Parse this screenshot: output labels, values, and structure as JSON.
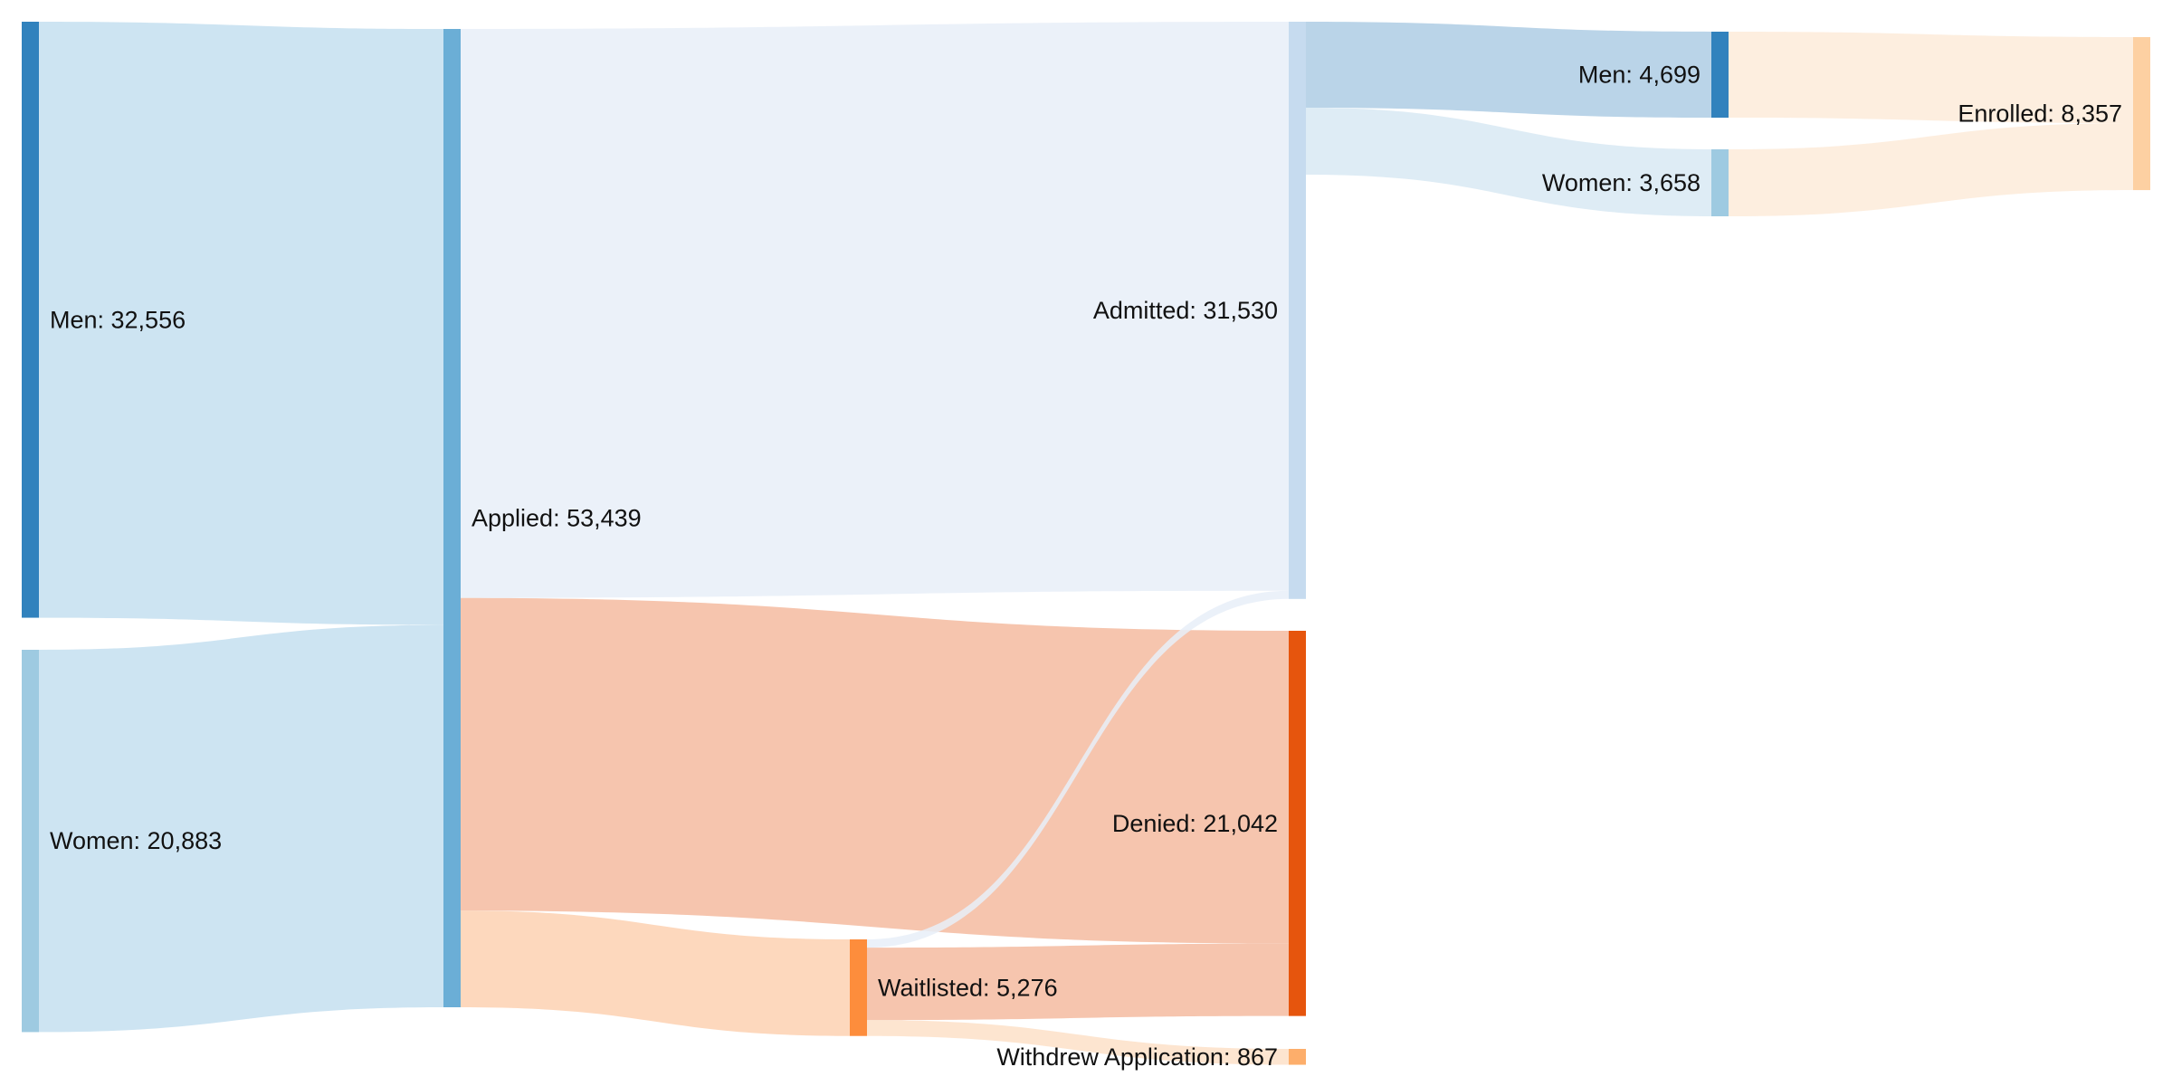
{
  "chart_data": {
    "type": "sankey",
    "title": "",
    "nodes": [
      {
        "id": "men",
        "label": "Men: 32,556",
        "value": 32556,
        "color": "#3182bd"
      },
      {
        "id": "women",
        "label": "Women: 20,883",
        "value": 20883,
        "color": "#9ecae1"
      },
      {
        "id": "applied",
        "label": "Applied: 53,439",
        "value": 53439,
        "color": "#6baed6"
      },
      {
        "id": "admitted",
        "label": "Admitted: 31,530",
        "value": 31530,
        "color": "#c6dbef"
      },
      {
        "id": "denied",
        "label": "Denied: 21,042",
        "value": 21042,
        "color": "#e6550d"
      },
      {
        "id": "waitlisted",
        "label": "Waitlisted: 5,276",
        "value": 5276,
        "color": "#fd8d3c"
      },
      {
        "id": "withdrew",
        "label": "Withdrew Application: 867",
        "value": 867,
        "color": "#fdae6b"
      },
      {
        "id": "men_adm",
        "label": "Men: 4,699",
        "value": 4699,
        "color": "#3182bd"
      },
      {
        "id": "women_adm",
        "label": "Women: 3,658",
        "value": 3658,
        "color": "#9ecae1"
      },
      {
        "id": "enrolled",
        "label": "Enrolled: 8,357",
        "value": 8357,
        "color": "#fdd0a2"
      }
    ],
    "links": [
      {
        "source": "men",
        "target": "applied",
        "value": 32556,
        "color": "#c4dff0"
      },
      {
        "source": "women",
        "target": "applied",
        "value": 20883,
        "color": "#c4dff0"
      },
      {
        "source": "applied",
        "target": "admitted",
        "value": 31080,
        "color": "#e7eff8"
      },
      {
        "source": "applied",
        "target": "denied",
        "value": 17083,
        "color": "#f4bba0"
      },
      {
        "source": "applied",
        "target": "waitlisted",
        "value": 5276,
        "color": "#fdd1b2"
      },
      {
        "source": "waitlisted",
        "target": "admitted",
        "value": 450,
        "color": "#e7eff8"
      },
      {
        "source": "waitlisted",
        "target": "denied",
        "value": 3959,
        "color": "#f4bba0"
      },
      {
        "source": "waitlisted",
        "target": "withdrew",
        "value": 867,
        "color": "#fde0c8"
      },
      {
        "source": "admitted",
        "target": "men_adm",
        "value": 4699,
        "color": "#aecde4"
      },
      {
        "source": "admitted",
        "target": "women_adm",
        "value": 3658,
        "color": "#d8e9f3"
      },
      {
        "source": "men_adm",
        "target": "enrolled",
        "value": 4699,
        "color": "#fdebd9"
      },
      {
        "source": "women_adm",
        "target": "enrolled",
        "value": 3658,
        "color": "#fdebd9"
      }
    ]
  }
}
